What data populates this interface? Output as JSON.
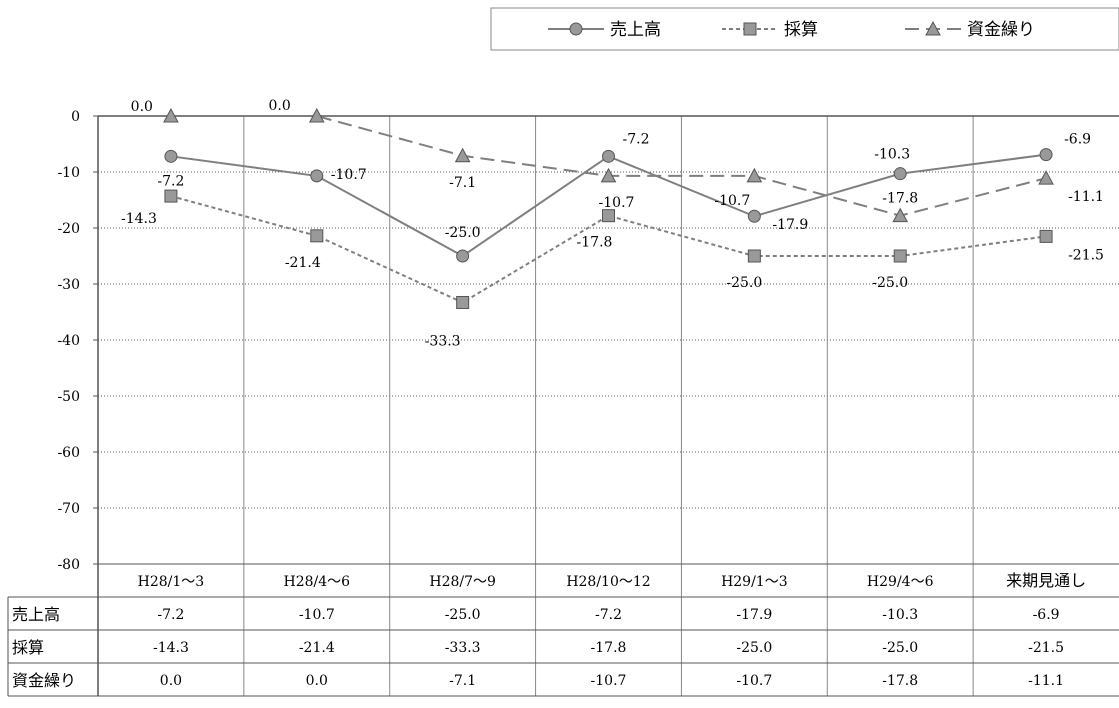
{
  "chart_data": {
    "type": "line",
    "categories": [
      "H28/1～3",
      "H28/4～6",
      "H28/7～9",
      "H28/10～12",
      "H29/1～3",
      "H29/4～6",
      "来期見通し"
    ],
    "ylim": [
      -80,
      0
    ],
    "yticks": [
      0,
      -10,
      -20,
      -30,
      -40,
      -50,
      -60,
      -70,
      -80
    ],
    "grid": true,
    "legend_position": "top-right",
    "series": [
      {
        "name": "売上高",
        "values": [
          -7.2,
          -10.7,
          -25.0,
          -7.2,
          -17.9,
          -10.3,
          -6.9
        ],
        "color": "#7f7f7f",
        "marker": "circle",
        "dash": "solid"
      },
      {
        "name": "採算",
        "values": [
          -14.3,
          -21.4,
          -33.3,
          -17.8,
          -25.0,
          -25.0,
          -21.5
        ],
        "color": "#7f7f7f",
        "marker": "square",
        "dash": "dotted"
      },
      {
        "name": "資金繰り",
        "values": [
          0.0,
          0.0,
          -7.1,
          -10.7,
          -10.7,
          -17.8,
          -11.1
        ],
        "color": "#7f7f7f",
        "marker": "triangle",
        "dash": "dashed"
      }
    ],
    "data_labels": [
      [
        "-7.2",
        "-10.7",
        "-25.0",
        "-7.2",
        "-17.9",
        "-10.3",
        "-6.9"
      ],
      [
        "-14.3",
        "-21.4",
        "-33.3",
        "-17.8",
        "-25.0",
        "-25.0",
        "-21.5"
      ],
      [
        "0.0",
        "0.0",
        "-7.1",
        "-10.7",
        "-10.7",
        "-17.8",
        "-11.1"
      ]
    ],
    "table": {
      "rows": [
        {
          "label": "売上高",
          "cells": [
            "-7.2",
            "-10.7",
            "-25.0",
            "-7.2",
            "-17.9",
            "-10.3",
            "-6.9"
          ]
        },
        {
          "label": "採算",
          "cells": [
            "-14.3",
            "-21.4",
            "-33.3",
            "-17.8",
            "-25.0",
            "-25.0",
            "-21.5"
          ]
        },
        {
          "label": "資金繰り",
          "cells": [
            "0.0",
            "0.0",
            "-7.1",
            "-10.7",
            "-10.7",
            "-17.8",
            "-11.1"
          ]
        }
      ]
    }
  }
}
